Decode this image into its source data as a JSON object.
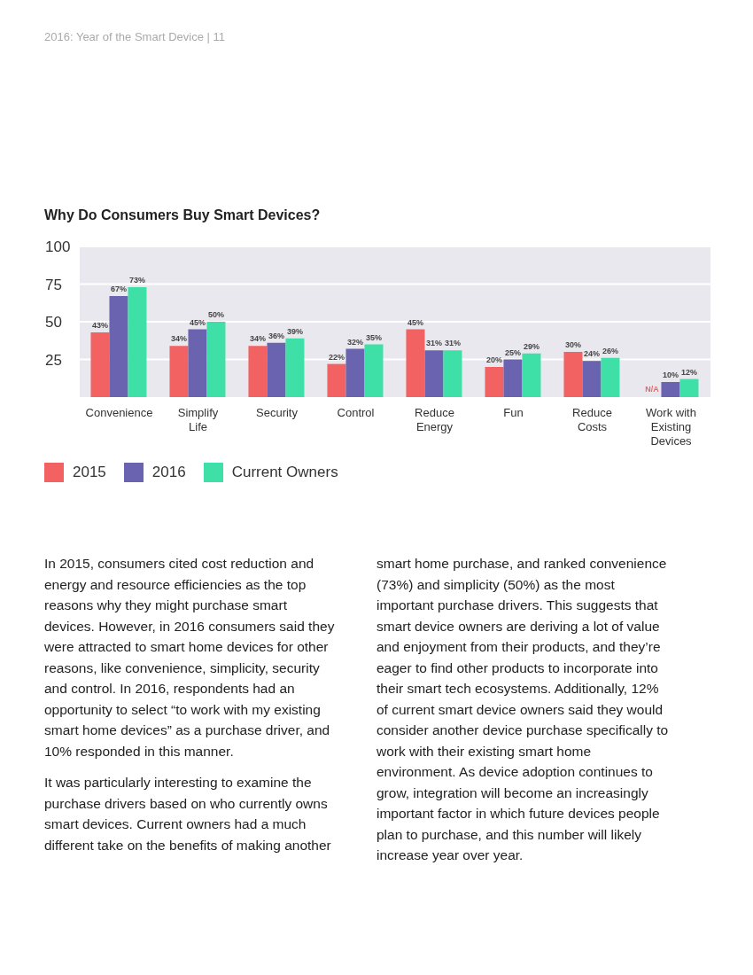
{
  "chart_data": {
    "type": "bar",
    "title": "Why Do Consumers Buy Smart Devices?",
    "categories": [
      "Convenience",
      "Simplify Life",
      "Security",
      "Control",
      "Reduce Energy",
      "Fun",
      "Reduce Costs",
      "Work with Existing Devices"
    ],
    "series": [
      {
        "name": "2015",
        "color": "#f26262",
        "values": [
          43,
          34,
          34,
          22,
          45,
          20,
          30,
          null
        ],
        "value_labels": [
          "43%",
          "34%",
          "34%",
          "22%",
          "45%",
          "20%",
          "30%",
          "N/A"
        ]
      },
      {
        "name": "2016",
        "color": "#6a63b0",
        "values": [
          67,
          45,
          36,
          32,
          31,
          25,
          24,
          10
        ],
        "value_labels": [
          "67%",
          "45%",
          "36%",
          "32%",
          "31%",
          "25%",
          "24%",
          "10%"
        ]
      },
      {
        "name": "Current Owners",
        "color": "#3ee0a8",
        "values": [
          73,
          50,
          39,
          35,
          31,
          29,
          26,
          12
        ],
        "value_labels": [
          "73%",
          "50%",
          "39%",
          "35%",
          "31%",
          "29%",
          "26%",
          "12%"
        ]
      }
    ],
    "ylim": [
      0,
      100
    ],
    "yticks": [
      25,
      50,
      75,
      100
    ],
    "grid": "y",
    "legend": "bottom left",
    "annotations": [
      "2016: Year of the Smart Device  |  11",
      "In 2015, consumers cited cost reduction and energy and resource efficiencies as the top reasons why they might purchase smart devices. However, in 2016 consumers said they were attracted to smart home devices for other reasons, like convenience, simplicity, security and control. In 2016, respondents had an opportunity to select “to work with my existing smart home devices” as a purchase driver, and 10% responded in this manner.",
      "It was particularly interesting to examine the purchase drivers based on who currently owns smart devices. Current owners had a much different take on the benefits of making another smart home purchase, and ranked convenience (73%) and simplicity (50%) as the most important purchase drivers. This suggests that smart device owners are deriving a lot of value and enjoyment from their products, and they’re eager to find other products to incorporate into their smart tech ecosystems. Additionally, 12% of current smart device owners said they would consider another device purchase specifically to work with their existing smart home environment. As device adoption continues to grow, integration will become an increasingly important factor in which future devices people plan to purchase, and this number will likely increase year over year."
    ]
  }
}
